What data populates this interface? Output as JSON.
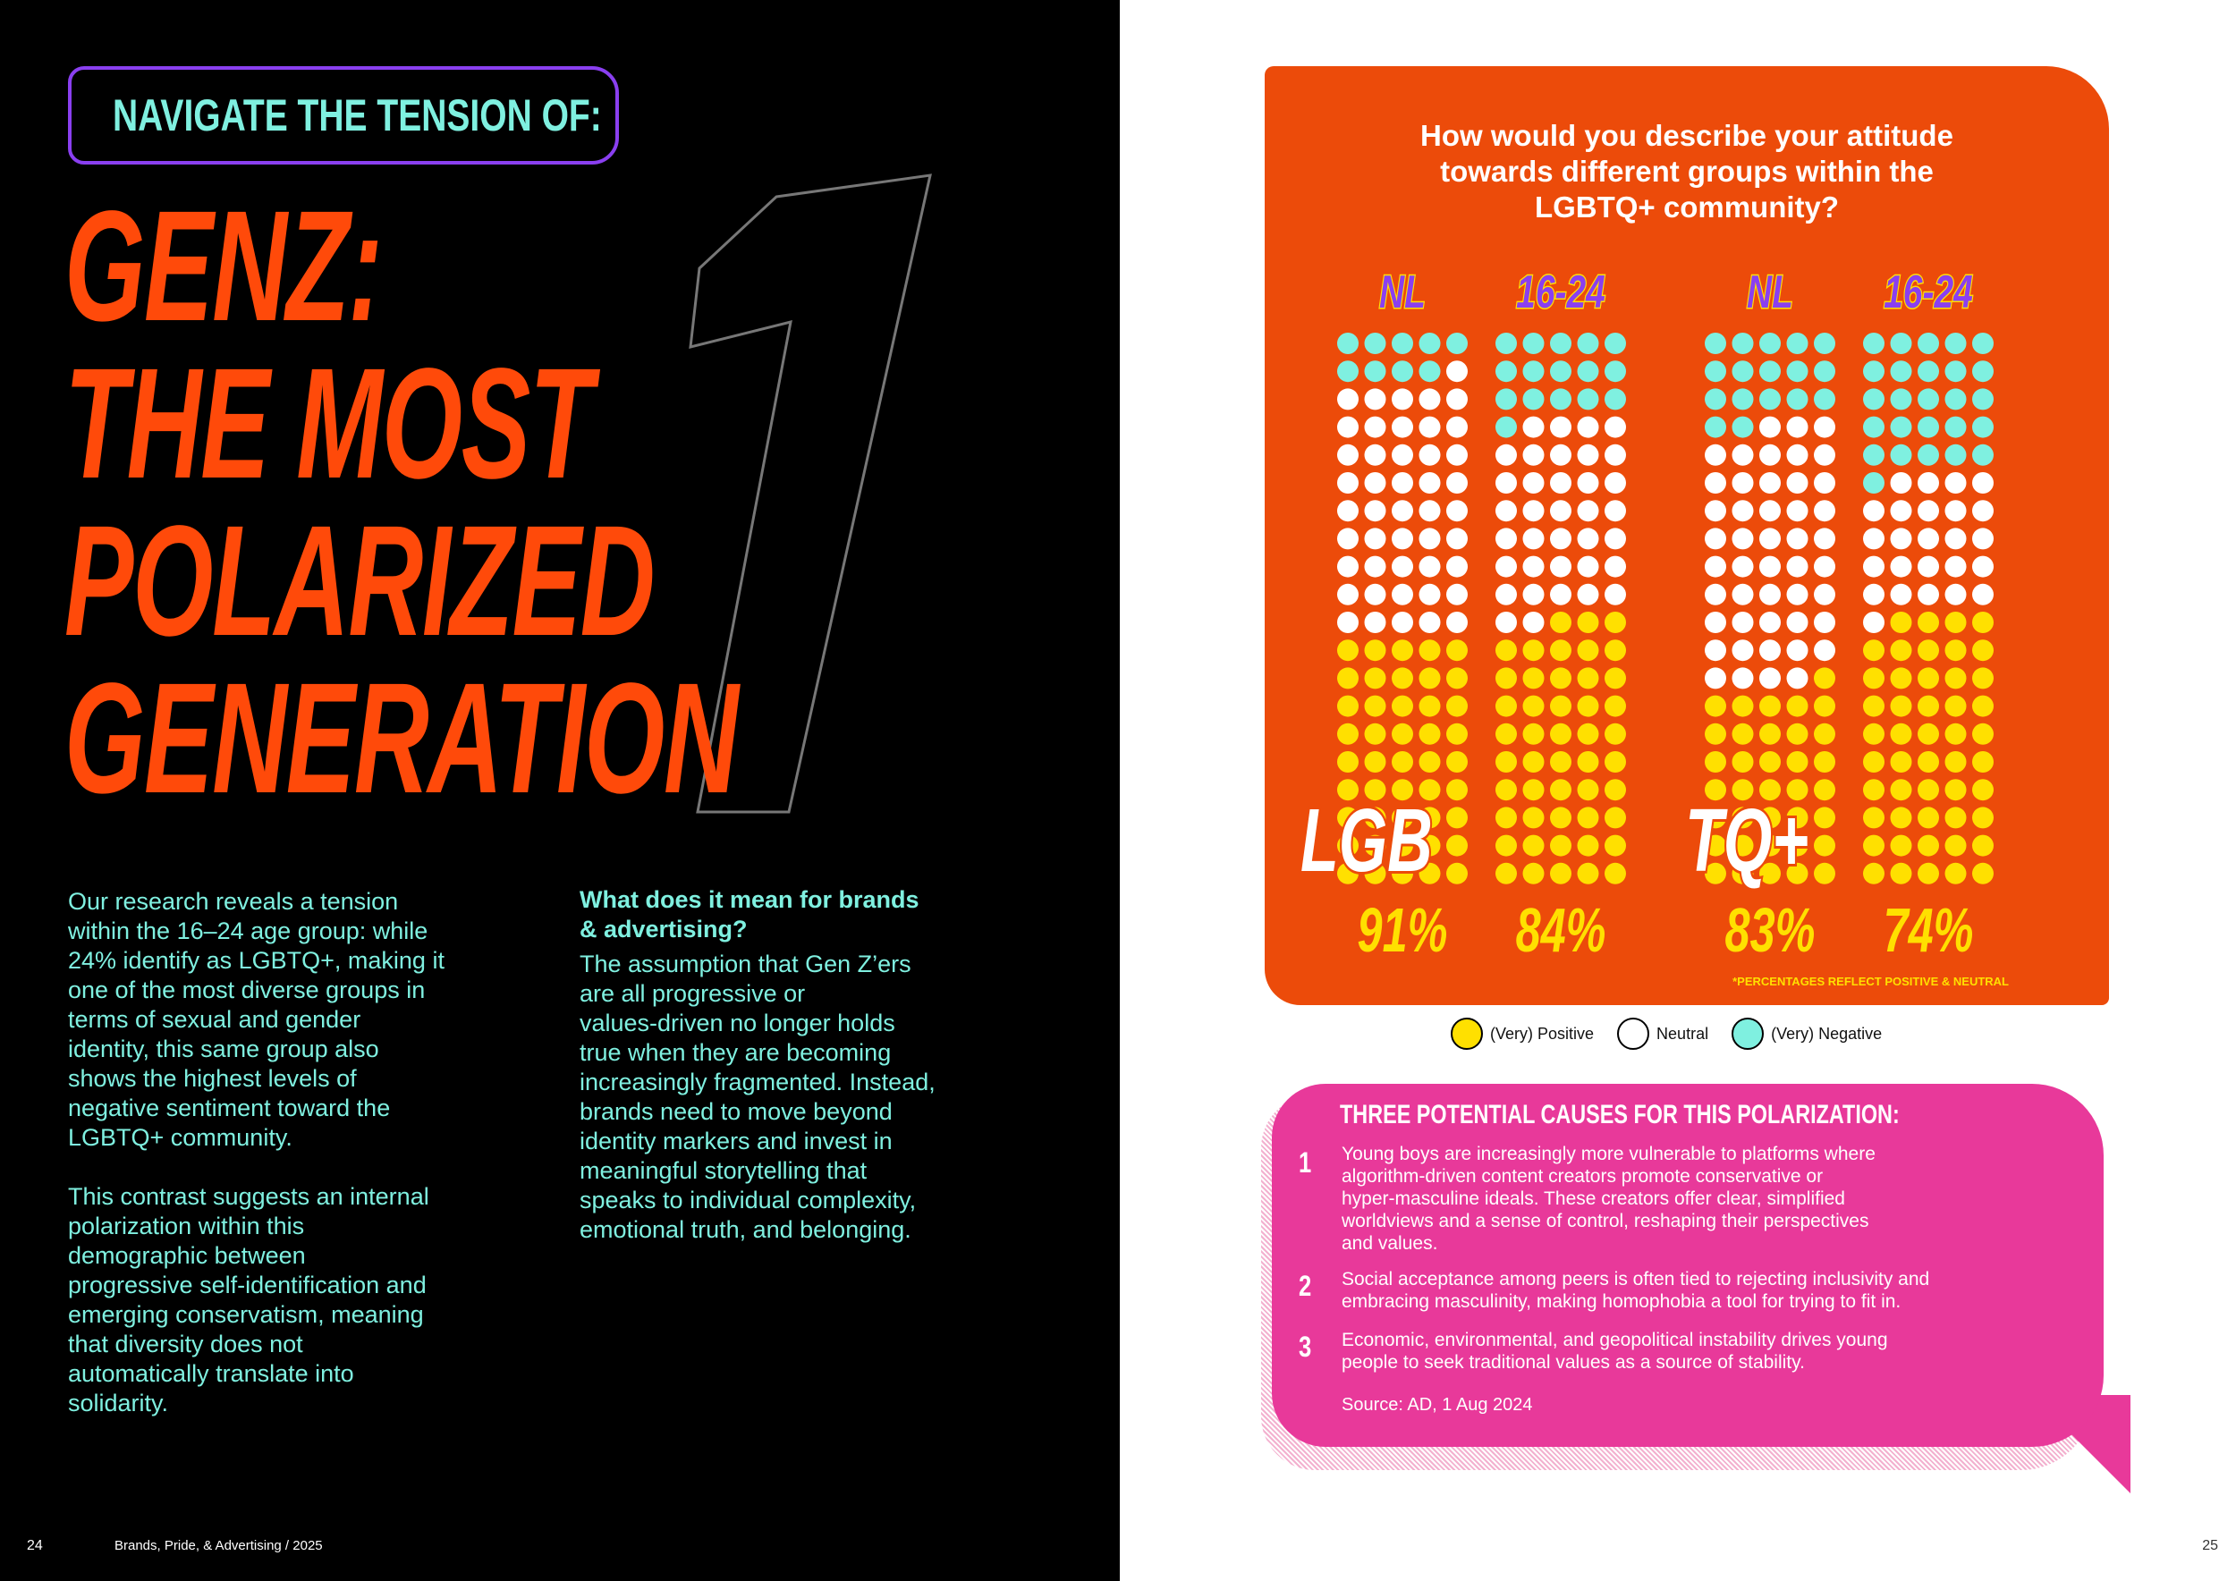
{
  "left": {
    "kicker": "NAVIGATE THE TENSION OF:",
    "big_number": "1",
    "headline": [
      "GENZ:",
      "THE MOST",
      "POLARIZED",
      "GENERATION"
    ],
    "body_col1": "Our research reveals a tension\nwithin the 16–24 age group: while\n24% identify as LGBTQ+, making it\none of the most diverse groups in\nterms of sexual and gender\nidentity, this same group also\nshows the highest levels of\nnegative sentiment toward the\nLGBTQ+ community.\n\nThis contrast suggests an internal\npolarization within this\ndemographic between\nprogressive self-identification and\nemerging conservatism, meaning\nthat diversity does not\nautomatically translate into\nsolidarity.",
    "col2_heading": "What does it mean for brands\n& advertising?",
    "body_col2": "The assumption that Gen Z’ers\nare all progressive or\nvalues-driven no longer holds\ntrue when they are becoming\nincreasingly fragmented. Instead,\nbrands need to move beyond\nidentity markers and invest in\nmeaningful storytelling that\nspeaks to individual complexity,\nemotional truth, and belonging.",
    "page_number": "24",
    "footer": "Brands, Pride, & Advertising / 2025"
  },
  "right": {
    "page_number": "25",
    "chart_title": "How would you describe your attitude\ntowards different groups within the\nLGBTQ+ community?",
    "footnote": "*PERCENTAGES REFLECT POSITIVE & NEUTRAL",
    "legend": [
      {
        "label": "(Very) Positive",
        "color": "#ffe000"
      },
      {
        "label": "Neutral",
        "color": "#ffffff"
      },
      {
        "label": "(Very) Negative",
        "color": "#7ff0e0"
      }
    ],
    "causes": {
      "title": "THREE POTENTIAL CAUSES FOR THIS POLARIZATION:",
      "items": [
        {
          "num": "1",
          "text": "Young boys are increasingly more vulnerable to platforms where\nalgorithm-driven content creators promote conservative or\nhyper-masculine ideals. These creators offer clear, simplified\nworldviews and a sense of control, reshaping their perspectives\nand values."
        },
        {
          "num": "2",
          "text": "Social acceptance among peers is often tied to rejecting inclusivity and\nembracing masculinity, making homophobia a tool for trying to fit in."
        },
        {
          "num": "3",
          "text": "Economic, environmental, and geopolitical instability drives young\npeople to seek traditional values as a source of stability."
        }
      ],
      "source": "Source: AD, 1 Aug 2024"
    }
  },
  "chart_data": {
    "type": "waffle",
    "title": "How would you describe your attitude towards different groups within the LGBTQ+ community?",
    "groups": [
      {
        "name": "LGB",
        "series": [
          {
            "name": "NL",
            "positive_neutral": "91%",
            "negative": 9,
            "neutral": 46,
            "positive": 45
          },
          {
            "name": "16-24",
            "positive_neutral": "84%",
            "negative": 16,
            "neutral": 36,
            "positive": 48
          }
        ]
      },
      {
        "name": "TQ+",
        "series": [
          {
            "name": "NL",
            "positive_neutral": "83%",
            "negative": 17,
            "neutral": 47,
            "positive": 36
          },
          {
            "name": "16-24",
            "positive_neutral": "74%",
            "negative": 26,
            "neutral": 25,
            "positive": 49
          }
        ]
      }
    ],
    "grid": {
      "columns": 5,
      "rows": 20
    },
    "colors": {
      "positive": "#ffe000",
      "neutral": "#ffffff",
      "negative": "#7ff0e0",
      "header": "#ffe000",
      "header_text": "#8a3ff0"
    }
  }
}
